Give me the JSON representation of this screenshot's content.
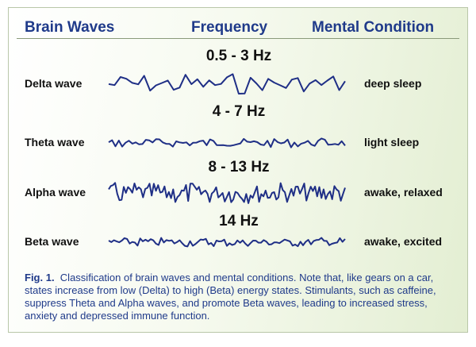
{
  "header": {
    "columns": [
      "Brain Waves",
      "Frequency",
      "Mental Condition"
    ]
  },
  "rows": [
    {
      "name": "Delta wave",
      "frequency": "0.5 - 3 Hz",
      "condition": "deep sleep"
    },
    {
      "name": "Theta wave",
      "frequency": "4 - 7 Hz",
      "condition": "light sleep"
    },
    {
      "name": "Alpha wave",
      "frequency": "8 - 13 Hz",
      "condition": "awake, relaxed"
    },
    {
      "name": "Beta wave",
      "frequency": "14 Hz",
      "condition": "awake, excited"
    }
  ],
  "caption": {
    "label": "Fig. 1.",
    "text": "Classification of brain waves and mental conditions. Note that, like gears on a car, states increase from low (Delta) to high (Beta) energy states. Stimulants, such as caffeine, suppress Theta and Alpha waves, and promote Beta waves, leading to increased stress, anxiety and depressed immune function."
  }
}
